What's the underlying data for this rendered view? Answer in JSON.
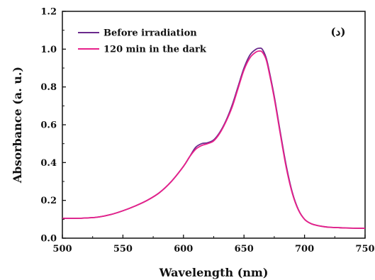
{
  "chart_data": {
    "type": "line",
    "xlabel": "Wavelength (nm)",
    "ylabel": "Absorbance (a. u.)",
    "xlim": [
      500,
      750
    ],
    "ylim": [
      0.0,
      1.2
    ],
    "xticks": [
      500,
      550,
      600,
      650,
      700,
      750
    ],
    "yticks": [
      "0.0",
      "0.2",
      "0.4",
      "0.6",
      "0.8",
      "1.0",
      "1.2"
    ],
    "panel_label": "(د)",
    "legend_position": "top-left",
    "grid": false,
    "series": [
      {
        "name": "Before irradiation",
        "color": "#6a2a8c",
        "x": [
          500,
          510,
          520,
          530,
          540,
          550,
          560,
          570,
          580,
          590,
          600,
          605,
          610,
          615,
          620,
          625,
          630,
          635,
          640,
          645,
          650,
          655,
          660,
          663,
          665,
          668,
          670,
          675,
          680,
          685,
          690,
          695,
          700,
          705,
          710,
          715,
          720,
          730,
          740,
          750
        ],
        "y": [
          0.105,
          0.105,
          0.107,
          0.112,
          0.125,
          0.145,
          0.17,
          0.2,
          0.24,
          0.3,
          0.38,
          0.43,
          0.48,
          0.5,
          0.505,
          0.52,
          0.56,
          0.62,
          0.7,
          0.8,
          0.9,
          0.97,
          1.0,
          1.005,
          1.0,
          0.96,
          0.91,
          0.75,
          0.56,
          0.38,
          0.24,
          0.15,
          0.1,
          0.078,
          0.068,
          0.062,
          0.058,
          0.055,
          0.053,
          0.052
        ]
      },
      {
        "name": "120 min in the dark",
        "color": "#e8208a",
        "x": [
          500,
          510,
          520,
          530,
          540,
          550,
          560,
          570,
          580,
          590,
          600,
          605,
          610,
          615,
          620,
          625,
          630,
          635,
          640,
          645,
          650,
          655,
          660,
          663,
          665,
          668,
          670,
          675,
          680,
          685,
          690,
          695,
          700,
          705,
          710,
          715,
          720,
          730,
          740,
          750
        ],
        "y": [
          0.105,
          0.105,
          0.107,
          0.112,
          0.125,
          0.145,
          0.17,
          0.2,
          0.24,
          0.3,
          0.38,
          0.43,
          0.47,
          0.49,
          0.5,
          0.515,
          0.555,
          0.615,
          0.69,
          0.79,
          0.89,
          0.955,
          0.985,
          0.99,
          0.985,
          0.95,
          0.9,
          0.74,
          0.55,
          0.37,
          0.235,
          0.148,
          0.1,
          0.078,
          0.068,
          0.062,
          0.058,
          0.055,
          0.053,
          0.052
        ]
      }
    ]
  }
}
